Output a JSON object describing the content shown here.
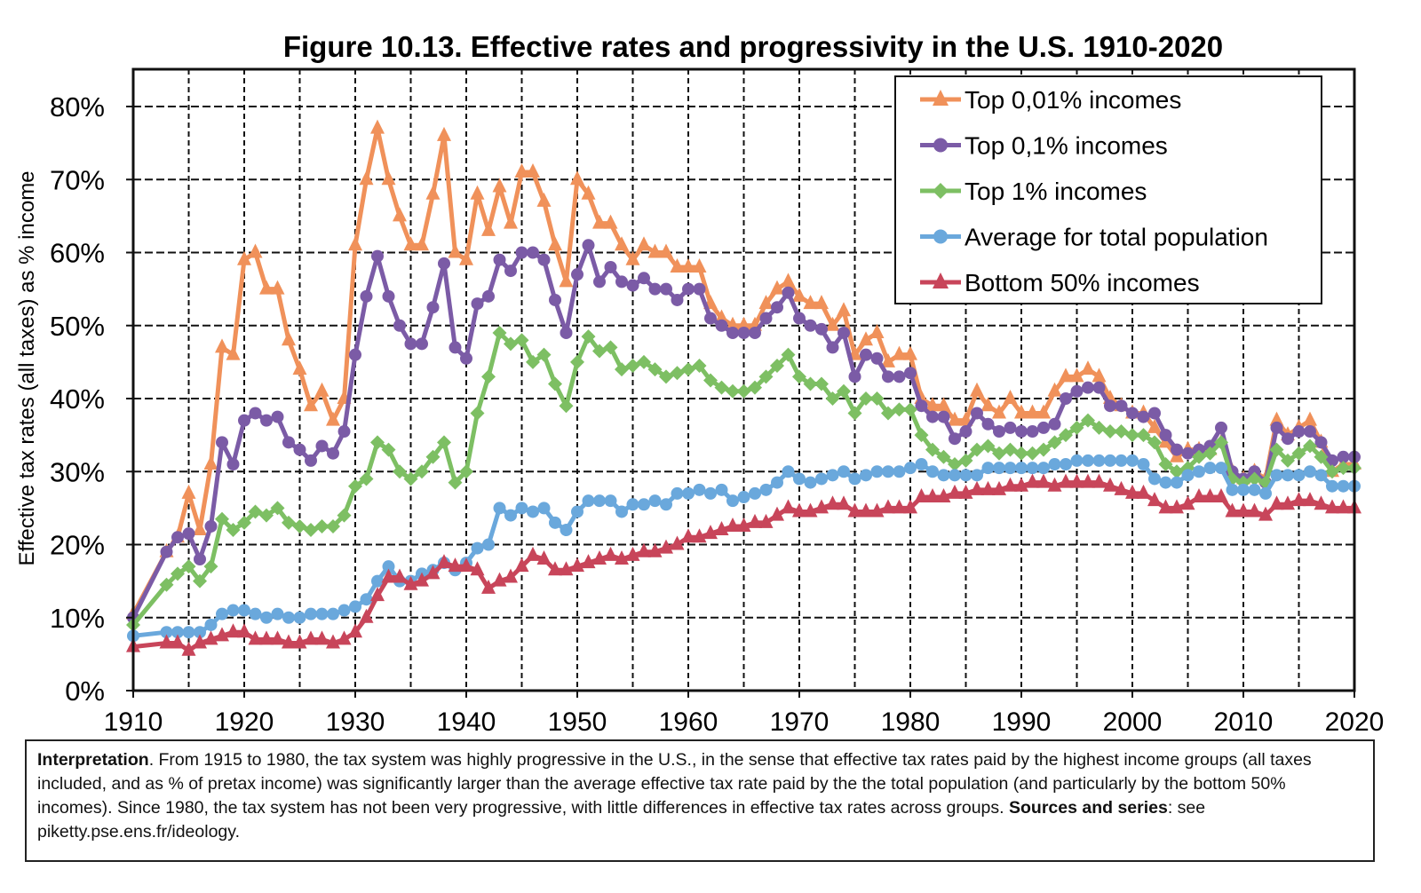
{
  "chart_data": {
    "type": "line",
    "title": "Figure 10.13. Effective rates and progressivity in the U.S. 1910-2020",
    "xlabel": "",
    "ylabel": "Effective tax rates (all taxes) as % income",
    "xlim": [
      1910,
      2020
    ],
    "ylim": [
      0,
      80
    ],
    "x_ticks": [
      "1910",
      "1920",
      "1930",
      "1940",
      "1950",
      "1960",
      "1970",
      "1980",
      "1990",
      "2000",
      "2010",
      "2020"
    ],
    "y_ticks": [
      "0%",
      "10%",
      "20%",
      "30%",
      "40%",
      "50%",
      "60%",
      "70%",
      "80%"
    ],
    "grid": true,
    "legend_position": "top-right",
    "x": [
      1910,
      1913,
      1914,
      1915,
      1916,
      1917,
      1918,
      1919,
      1920,
      1921,
      1922,
      1923,
      1924,
      1925,
      1926,
      1927,
      1928,
      1929,
      1930,
      1931,
      1932,
      1933,
      1934,
      1935,
      1936,
      1937,
      1938,
      1939,
      1940,
      1941,
      1942,
      1943,
      1944,
      1945,
      1946,
      1947,
      1948,
      1949,
      1950,
      1951,
      1952,
      1953,
      1954,
      1955,
      1956,
      1957,
      1958,
      1959,
      1960,
      1961,
      1962,
      1963,
      1964,
      1965,
      1966,
      1967,
      1968,
      1969,
      1970,
      1971,
      1972,
      1973,
      1974,
      1975,
      1976,
      1977,
      1978,
      1979,
      1980,
      1981,
      1982,
      1983,
      1984,
      1985,
      1986,
      1987,
      1988,
      1989,
      1990,
      1991,
      1992,
      1993,
      1994,
      1995,
      1996,
      1997,
      1998,
      1999,
      2000,
      2001,
      2002,
      2003,
      2004,
      2005,
      2006,
      2007,
      2008,
      2009,
      2010,
      2011,
      2012,
      2013,
      2014,
      2015,
      2016,
      2017,
      2018,
      2019,
      2020
    ],
    "series": [
      {
        "name": "Top 0,01% incomes",
        "color": "#f0915a",
        "marker": "triangle",
        "values": [
          10.5,
          19,
          21,
          27,
          22,
          31,
          47,
          46,
          59,
          60,
          55,
          55,
          48,
          44,
          39,
          41,
          37,
          40,
          61,
          70,
          77,
          70,
          65,
          61,
          61,
          68,
          76,
          60,
          59,
          68,
          63,
          69,
          64,
          71,
          71,
          67,
          61,
          56,
          70,
          68,
          64,
          64,
          61,
          59,
          61,
          60,
          60,
          58,
          58,
          58,
          53,
          51,
          50,
          50,
          50,
          53,
          55,
          56,
          54,
          53,
          53,
          50,
          52,
          46,
          48,
          49,
          45,
          46,
          46,
          40,
          39,
          39,
          37,
          37,
          41,
          39,
          38,
          40,
          38,
          38,
          38,
          41,
          43,
          43,
          44,
          43,
          40,
          39,
          38,
          38,
          36,
          34,
          32,
          33,
          33,
          33,
          34,
          30,
          29,
          30,
          29,
          37,
          35,
          36,
          37,
          34,
          30,
          31,
          31
        ]
      },
      {
        "name": "Top 0,1% incomes",
        "color": "#7b5ba6",
        "marker": "circle",
        "values": [
          10,
          19,
          21,
          21.5,
          18,
          22.5,
          34,
          31,
          37,
          38,
          37,
          37.5,
          34,
          33,
          31.5,
          33.5,
          32.5,
          35.5,
          46,
          54,
          59.5,
          54,
          50,
          47.5,
          47.5,
          52.5,
          58.5,
          47,
          45.5,
          53,
          54,
          59,
          57.5,
          60,
          60,
          59,
          53.5,
          49,
          57,
          61,
          56,
          58,
          56,
          55.5,
          56.5,
          55,
          55,
          53.5,
          55,
          55,
          51,
          50,
          49,
          49,
          49,
          51,
          52.5,
          54.5,
          51,
          50,
          49.5,
          47,
          49,
          43,
          46,
          45.5,
          43,
          43,
          43.5,
          39,
          37.5,
          37.5,
          34.5,
          35.5,
          38,
          36.5,
          35.5,
          36,
          35.5,
          35.5,
          36,
          36.5,
          40,
          41,
          41.5,
          41.5,
          39,
          39,
          38,
          37.5,
          38,
          35,
          33,
          32.5,
          33,
          33.5,
          36,
          30,
          29,
          30,
          28.5,
          36,
          34.5,
          35.5,
          35.5,
          34,
          31.5,
          32,
          32
        ]
      },
      {
        "name": "Top 1% incomes",
        "color": "#7dbf63",
        "marker": "diamond",
        "values": [
          9,
          14.5,
          16,
          17,
          15,
          17,
          23.5,
          22,
          23,
          24.5,
          24,
          25,
          23,
          22.5,
          22,
          22.5,
          22.5,
          24,
          28,
          29,
          34,
          33,
          30,
          29,
          30,
          32,
          34,
          28.5,
          30,
          38,
          43,
          49,
          47.5,
          48,
          45,
          46,
          42,
          39,
          45,
          48.5,
          46.5,
          47,
          44,
          44.5,
          45,
          44,
          43,
          43.5,
          44,
          44.5,
          42.5,
          41.5,
          41,
          41,
          41.5,
          43,
          44.5,
          46,
          43,
          42,
          42,
          40,
          41,
          38,
          40,
          40,
          38,
          38.5,
          38.5,
          35,
          33,
          32,
          31,
          31.5,
          33,
          33.5,
          32.5,
          33,
          32.5,
          32.5,
          33,
          34,
          35,
          36,
          37,
          36,
          35.5,
          35.5,
          35,
          35,
          34,
          31,
          30,
          30.5,
          32,
          32.5,
          34,
          29,
          28.5,
          29,
          28.5,
          33,
          31.5,
          32.5,
          33.5,
          32,
          30,
          30.5,
          30.5
        ]
      },
      {
        "name": "Average for total population",
        "color": "#6aa8dc",
        "marker": "circle",
        "values": [
          7.5,
          8,
          8,
          8,
          8,
          9,
          10.5,
          11,
          11,
          10.5,
          10,
          10.5,
          10,
          10,
          10.5,
          10.5,
          10.5,
          11,
          11.5,
          12.5,
          15,
          17,
          15,
          15,
          16,
          16.5,
          17.5,
          16.5,
          17.5,
          19.5,
          20,
          25,
          24,
          25,
          24.5,
          25,
          23,
          22,
          24.5,
          26,
          26,
          26,
          24.5,
          25.5,
          25.5,
          26,
          25.5,
          27,
          27,
          27.5,
          27,
          27.5,
          26,
          26.5,
          27,
          27.5,
          28.5,
          30,
          29,
          28.5,
          29,
          29.5,
          30,
          29,
          29.5,
          30,
          30,
          30,
          30.5,
          31,
          30,
          29.5,
          29.5,
          29.5,
          29.5,
          30.5,
          30.5,
          30.5,
          30.5,
          30.5,
          30.5,
          31,
          31,
          31.5,
          31.5,
          31.5,
          31.5,
          31.5,
          31.5,
          31,
          29,
          28.5,
          28.5,
          29.5,
          30,
          30.5,
          30.5,
          27.5,
          27.5,
          27.5,
          27,
          29.5,
          29.5,
          29.5,
          30,
          29.5,
          28,
          28,
          28
        ]
      },
      {
        "name": "Bottom 50% incomes",
        "color": "#c8455a",
        "marker": "triangle",
        "values": [
          6,
          6.5,
          6.5,
          5.5,
          6.5,
          7,
          7.5,
          8,
          8,
          7,
          7,
          7,
          6.5,
          6.5,
          7,
          7,
          6.5,
          7,
          8,
          10,
          13,
          15.5,
          15.5,
          14.5,
          15,
          16,
          17.5,
          17,
          17,
          16.5,
          14,
          15,
          15.5,
          17,
          18.5,
          18,
          16.5,
          16.5,
          17,
          17.5,
          18,
          18.5,
          18,
          18.5,
          19,
          19,
          19.5,
          20,
          21,
          21,
          21.5,
          22,
          22.5,
          22.5,
          23,
          23,
          24,
          25,
          24.5,
          24.5,
          25,
          25.5,
          25.5,
          24.5,
          24.5,
          24.5,
          25,
          25,
          25,
          26.5,
          26.5,
          26.5,
          27,
          27,
          27.5,
          27.5,
          27.5,
          28,
          28,
          28.5,
          28.5,
          28,
          28.5,
          28.5,
          28.5,
          28.5,
          28,
          27.5,
          27,
          27,
          26,
          25,
          25,
          25.5,
          26.5,
          26.5,
          26.5,
          24.5,
          24.5,
          24.5,
          24,
          25.5,
          25.5,
          26,
          26,
          25.5,
          25,
          25,
          25
        ]
      }
    ]
  },
  "interpretation": {
    "lead": "Interpretation",
    "text": ". From 1915 to 1980, the tax system was highly progressive in the U.S., in the sense that effective tax rates paid by the highest income groups (all taxes included, and as % of pretax income) was significantly larger than the average effective tax rate paid by the the total population (and particularly by the bottom 50% incomes). Since 1980, the tax system has not been very progressive, with little differences in effective tax rates across groups. ",
    "sources_label": "Sources and series",
    "sources_text": ": see piketty.pse.ens.fr/ideology."
  }
}
